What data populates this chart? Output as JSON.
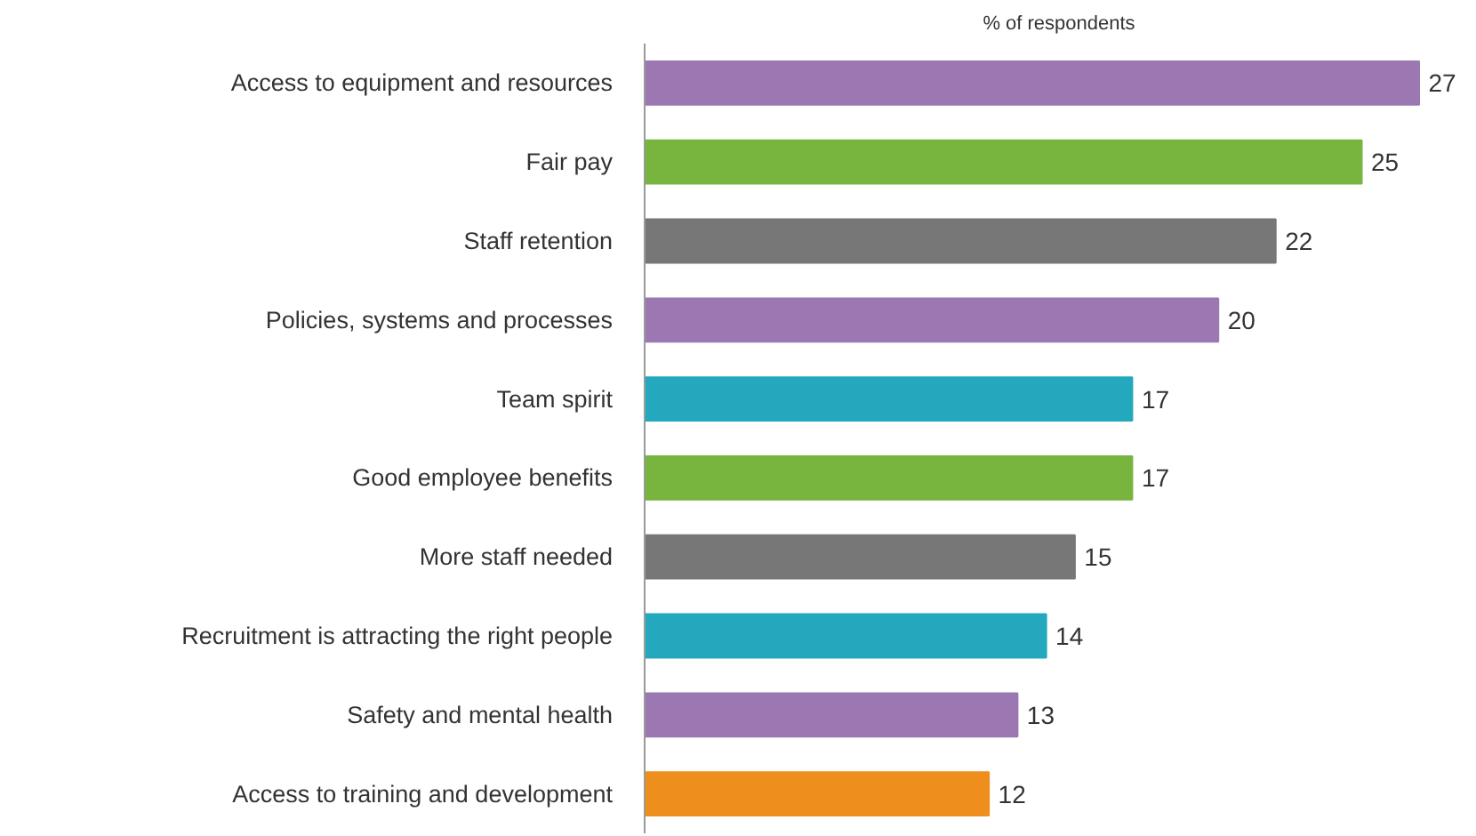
{
  "chart_data": {
    "type": "bar",
    "orientation": "horizontal",
    "title": "% of respondents",
    "categories": [
      "Access to equipment and resources",
      "Fair pay",
      "Staff retention",
      "Policies, systems and processes",
      "Team spirit",
      "Good employee benefits",
      "More staff needed",
      "Recruitment is attracting the right people",
      "Safety and mental health",
      "Access to training and development"
    ],
    "values": [
      27,
      25,
      22,
      20,
      17,
      17,
      15,
      14,
      13,
      12
    ],
    "colors": [
      "#9b78b2",
      "#77b53f",
      "#777777",
      "#9b78b2",
      "#23a8bd",
      "#77b53f",
      "#777777",
      "#23a8bd",
      "#9b78b2",
      "#ee8e1c"
    ],
    "data_labels": true
  }
}
